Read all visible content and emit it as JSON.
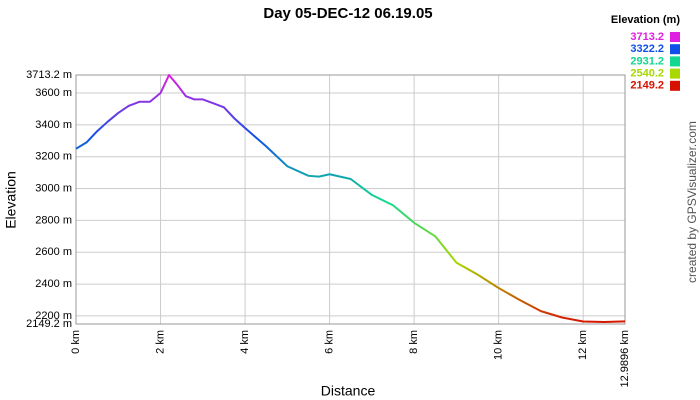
{
  "chart_data": {
    "type": "line",
    "title": "Day 05-DEC-12 06.19.05",
    "x_label": "Distance",
    "y_label": "Elevation",
    "side_note": "created by GPSVisualizer.com",
    "x": [
      0,
      0.25,
      0.5,
      0.75,
      1.0,
      1.25,
      1.5,
      1.75,
      2.0,
      2.2,
      2.4,
      2.6,
      2.8,
      3.0,
      3.25,
      3.5,
      3.75,
      4.0,
      4.5,
      5.0,
      5.5,
      5.75,
      6.0,
      6.5,
      7.0,
      7.5,
      8.0,
      8.5,
      9.0,
      9.5,
      10.0,
      10.5,
      11.0,
      11.5,
      12.0,
      12.5,
      12.9896
    ],
    "values": [
      3250,
      3290,
      3360,
      3420,
      3475,
      3520,
      3545,
      3545,
      3600,
      3713,
      3650,
      3580,
      3560,
      3560,
      3535,
      3510,
      3440,
      3380,
      3265,
      3140,
      3080,
      3075,
      3090,
      3060,
      2960,
      2895,
      2785,
      2700,
      2535,
      2460,
      2375,
      2300,
      2230,
      2190,
      2165,
      2162,
      2166
    ],
    "xlim": [
      0,
      12.9896
    ],
    "ylim": [
      2149.2,
      3713.2
    ],
    "xticks": [
      {
        "value": 0,
        "label": "0 km"
      },
      {
        "value": 2,
        "label": "2 km"
      },
      {
        "value": 4,
        "label": "4 km"
      },
      {
        "value": 6,
        "label": "6 km"
      },
      {
        "value": 8,
        "label": "8 km"
      },
      {
        "value": 10,
        "label": "10 km"
      },
      {
        "value": 12,
        "label": "12 km"
      },
      {
        "value": 12.9896,
        "label": "12.9896 km"
      }
    ],
    "yticks": [
      {
        "value": 2149.2,
        "label": "2149.2 m"
      },
      {
        "value": 2200,
        "label": "2200 m"
      },
      {
        "value": 2400,
        "label": "2400 m"
      },
      {
        "value": 2600,
        "label": "2600 m"
      },
      {
        "value": 2800,
        "label": "2800 m"
      },
      {
        "value": 3000,
        "label": "3000 m"
      },
      {
        "value": 3200,
        "label": "3200 m"
      },
      {
        "value": 3400,
        "label": "3400 m"
      },
      {
        "value": 3600,
        "label": "3600 m"
      },
      {
        "value": 3713.2,
        "label": "3713.2 m"
      }
    ],
    "grid": true,
    "legend": {
      "title": "Elevation (m)",
      "entries": [
        {
          "value": 3713.2,
          "color": "#e020e0"
        },
        {
          "value": 3322.2,
          "color": "#1050e8"
        },
        {
          "value": 2931.2,
          "color": "#10d890"
        },
        {
          "value": 2540.2,
          "color": "#a8d800"
        },
        {
          "value": 2149.2,
          "color": "#d81000"
        }
      ]
    }
  }
}
